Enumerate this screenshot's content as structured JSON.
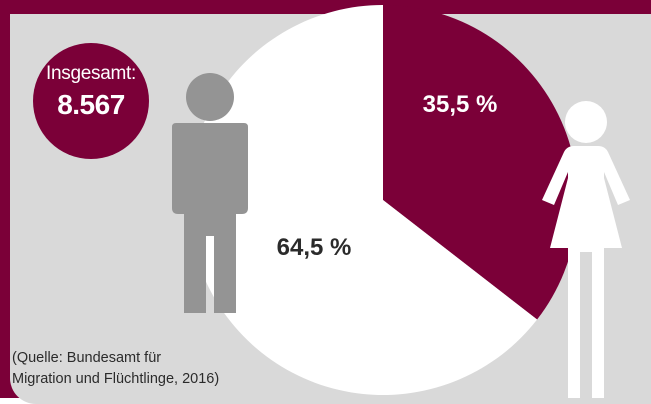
{
  "total": {
    "label": "Insgesamt:",
    "value": "8.567"
  },
  "source": {
    "line1": "(Quelle: Bundesamt für",
    "line2": "Migration und Flüchtlinge, 2016)"
  },
  "colors": {
    "accent": "#7b0038",
    "background": "#d9d9d9",
    "pie_main": "#ffffff",
    "figure": "#949494"
  },
  "icons": {
    "male": "man-figure-icon",
    "female": "woman-figure-icon"
  },
  "chart_data": {
    "type": "pie",
    "title": "",
    "slices": [
      {
        "label": "35,5 %",
        "value": 35.5,
        "color": "#7b0038"
      },
      {
        "label": "64,5 %",
        "value": 64.5,
        "color": "#ffffff"
      }
    ]
  }
}
